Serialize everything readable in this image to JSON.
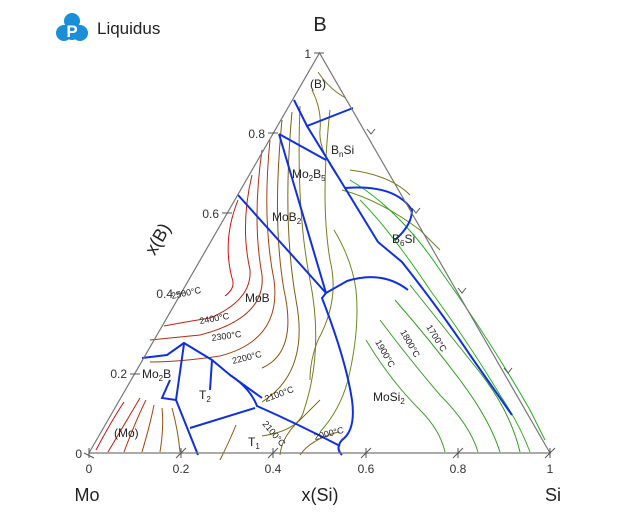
{
  "brand": {
    "name": "Liquidus",
    "logo_letter": "P",
    "logo_color": "#1a8fd8"
  },
  "diagram": {
    "corners": {
      "top": "B",
      "left": "Mo",
      "right": "Si"
    },
    "axes": {
      "bottom_label": "x(Si)",
      "left_label": "x(B)",
      "bottom_ticks": [
        "0",
        "0.2",
        "0.4",
        "0.6",
        "0.8",
        "1"
      ],
      "left_ticks": [
        "0",
        "0.2",
        "0.4",
        "0.6",
        "0.8",
        "1"
      ]
    },
    "phase_labels": [
      {
        "main": "(B)",
        "sub": ""
      },
      {
        "main": "B",
        "sub": "n",
        "tail": "Si"
      },
      {
        "main": "Mo",
        "sub": "2",
        "mid": "B",
        "sub2": "5"
      },
      {
        "main": "MoB",
        "sub": "2"
      },
      {
        "main": "B",
        "sub": "6",
        "tail": "Si"
      },
      {
        "main": "MoB",
        "sub": ""
      },
      {
        "main": "Mo",
        "sub": "2",
        "tail": "B"
      },
      {
        "main": "T",
        "sub": "2"
      },
      {
        "main": "(Mo)",
        "sub": ""
      },
      {
        "main": "T",
        "sub": "1"
      },
      {
        "main": "MoSi",
        "sub": "2"
      }
    ],
    "isotherms": [
      "2500°C",
      "2400°C",
      "2300°C",
      "2200°C",
      "2100°C",
      "2100°C",
      "2000°C",
      "1900°C",
      "1800°C",
      "1700°C"
    ],
    "colors": {
      "boundary": "#1030e0",
      "frame": "#777777",
      "hot": "#cc1010",
      "warm": "#8a5a10",
      "mid": "#7a7a20",
      "cool": "#30a020"
    }
  }
}
